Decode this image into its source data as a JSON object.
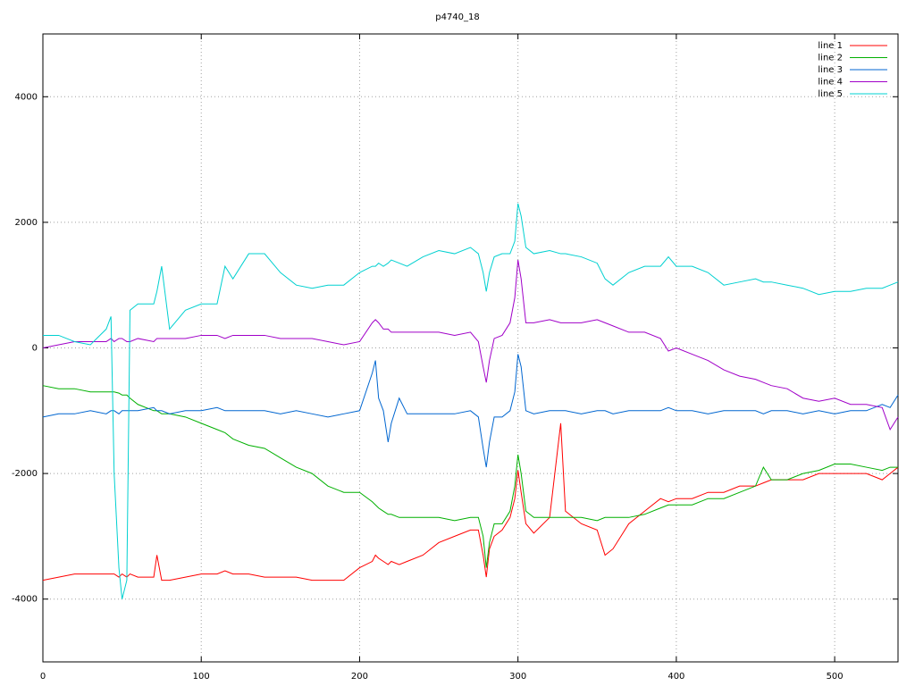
{
  "chart_data": {
    "type": "line",
    "title": "p4740_18",
    "x": [
      0,
      10,
      20,
      30,
      40,
      43,
      45,
      48,
      50,
      53,
      55,
      60,
      70,
      72,
      75,
      80,
      90,
      100,
      110,
      115,
      120,
      130,
      140,
      150,
      160,
      170,
      180,
      190,
      200,
      208,
      210,
      212,
      215,
      218,
      220,
      225,
      230,
      240,
      250,
      260,
      270,
      275,
      278,
      280,
      282,
      285,
      290,
      295,
      298,
      300,
      302,
      305,
      310,
      320,
      327,
      330,
      340,
      350,
      355,
      360,
      370,
      380,
      390,
      395,
      400,
      410,
      420,
      430,
      440,
      450,
      455,
      460,
      470,
      480,
      490,
      500,
      510,
      520,
      530,
      535,
      540
    ],
    "series": [
      {
        "name": "line 1",
        "color": "#ff0000",
        "values": [
          -3700,
          -3650,
          -3600,
          -3600,
          -3600,
          -3600,
          -3600,
          -3650,
          -3600,
          -3650,
          -3600,
          -3650,
          -3650,
          -3300,
          -3700,
          -3700,
          -3650,
          -3600,
          -3600,
          -3550,
          -3600,
          -3600,
          -3650,
          -3650,
          -3650,
          -3700,
          -3700,
          -3700,
          -3500,
          -3400,
          -3300,
          -3350,
          -3400,
          -3450,
          -3400,
          -3450,
          -3400,
          -3300,
          -3100,
          -3000,
          -2900,
          -2900,
          -3300,
          -3650,
          -3200,
          -3000,
          -2900,
          -2700,
          -2400,
          -1950,
          -2300,
          -2800,
          -2950,
          -2700,
          -1200,
          -2600,
          -2800,
          -2900,
          -3300,
          -3200,
          -2800,
          -2600,
          -2400,
          -2450,
          -2400,
          -2400,
          -2300,
          -2300,
          -2200,
          -2200,
          -2150,
          -2100,
          -2100,
          -2100,
          -2000,
          -2000,
          -2000,
          -2000,
          -2100,
          -2000,
          -1900
        ]
      },
      {
        "name": "line 2",
        "color": "#00b000",
        "values": [
          -600,
          -650,
          -650,
          -700,
          -700,
          -700,
          -700,
          -720,
          -750,
          -750,
          -800,
          -900,
          -1000,
          -1000,
          -1050,
          -1050,
          -1100,
          -1200,
          -1300,
          -1350,
          -1450,
          -1550,
          -1600,
          -1750,
          -1900,
          -2000,
          -2200,
          -2300,
          -2300,
          -2450,
          -2500,
          -2550,
          -2600,
          -2650,
          -2650,
          -2700,
          -2700,
          -2700,
          -2700,
          -2750,
          -2700,
          -2700,
          -3000,
          -3500,
          -3100,
          -2800,
          -2800,
          -2600,
          -2200,
          -1700,
          -2000,
          -2600,
          -2700,
          -2700,
          -2700,
          -2700,
          -2700,
          -2750,
          -2700,
          -2700,
          -2700,
          -2650,
          -2550,
          -2500,
          -2500,
          -2500,
          -2400,
          -2400,
          -2300,
          -2200,
          -1900,
          -2100,
          -2100,
          -2000,
          -1950,
          -1850,
          -1850,
          -1900,
          -1950,
          -1900,
          -1900
        ]
      },
      {
        "name": "line 3",
        "color": "#0066d0",
        "values": [
          -1100,
          -1050,
          -1050,
          -1000,
          -1050,
          -1000,
          -1000,
          -1050,
          -1000,
          -1000,
          -1000,
          -1000,
          -950,
          -1000,
          -1000,
          -1050,
          -1000,
          -1000,
          -950,
          -1000,
          -1000,
          -1000,
          -1000,
          -1050,
          -1000,
          -1050,
          -1100,
          -1050,
          -1000,
          -400,
          -200,
          -800,
          -1000,
          -1500,
          -1200,
          -800,
          -1050,
          -1050,
          -1050,
          -1050,
          -1000,
          -1100,
          -1600,
          -1900,
          -1500,
          -1100,
          -1100,
          -1000,
          -700,
          -100,
          -300,
          -1000,
          -1050,
          -1000,
          -1000,
          -1000,
          -1050,
          -1000,
          -1000,
          -1050,
          -1000,
          -1000,
          -1000,
          -950,
          -1000,
          -1000,
          -1050,
          -1000,
          -1000,
          -1000,
          -1050,
          -1000,
          -1000,
          -1050,
          -1000,
          -1050,
          -1000,
          -1000,
          -900,
          -950,
          -750
        ]
      },
      {
        "name": "line 4",
        "color": "#a000c8",
        "values": [
          0,
          50,
          100,
          100,
          100,
          150,
          100,
          150,
          150,
          100,
          100,
          150,
          100,
          150,
          150,
          150,
          150,
          200,
          200,
          150,
          200,
          200,
          200,
          150,
          150,
          150,
          100,
          50,
          100,
          400,
          450,
          400,
          300,
          300,
          250,
          250,
          250,
          250,
          250,
          200,
          250,
          100,
          -300,
          -550,
          -200,
          150,
          200,
          400,
          800,
          1400,
          1100,
          400,
          400,
          450,
          400,
          400,
          400,
          450,
          400,
          350,
          250,
          250,
          150,
          -50,
          0,
          -100,
          -200,
          -350,
          -450,
          -500,
          -550,
          -600,
          -650,
          -800,
          -850,
          -800,
          -900,
          -900,
          -950,
          -1300,
          -1100
        ]
      },
      {
        "name": "line 5",
        "color": "#00d0d0",
        "values": [
          200,
          200,
          100,
          50,
          300,
          500,
          -2000,
          -3500,
          -4000,
          -3700,
          600,
          700,
          700,
          900,
          1300,
          300,
          600,
          700,
          700,
          1300,
          1100,
          1500,
          1500,
          1200,
          1000,
          950,
          1000,
          1000,
          1200,
          1300,
          1300,
          1350,
          1300,
          1350,
          1400,
          1350,
          1300,
          1450,
          1550,
          1500,
          1600,
          1500,
          1200,
          900,
          1200,
          1450,
          1500,
          1500,
          1700,
          2300,
          2100,
          1600,
          1500,
          1550,
          1500,
          1500,
          1450,
          1350,
          1100,
          1000,
          1200,
          1300,
          1300,
          1450,
          1300,
          1300,
          1200,
          1000,
          1050,
          1100,
          1050,
          1050,
          1000,
          950,
          850,
          900,
          900,
          950,
          950,
          1000,
          1050
        ]
      }
    ],
    "xlim": [
      0,
      540
    ],
    "xticks": [
      0,
      100,
      200,
      300,
      400,
      500
    ],
    "ylim": [
      -5000,
      5000
    ],
    "yticks": [
      -4000,
      -2000,
      0,
      2000,
      4000
    ],
    "grid": true,
    "legend": "top-right"
  }
}
